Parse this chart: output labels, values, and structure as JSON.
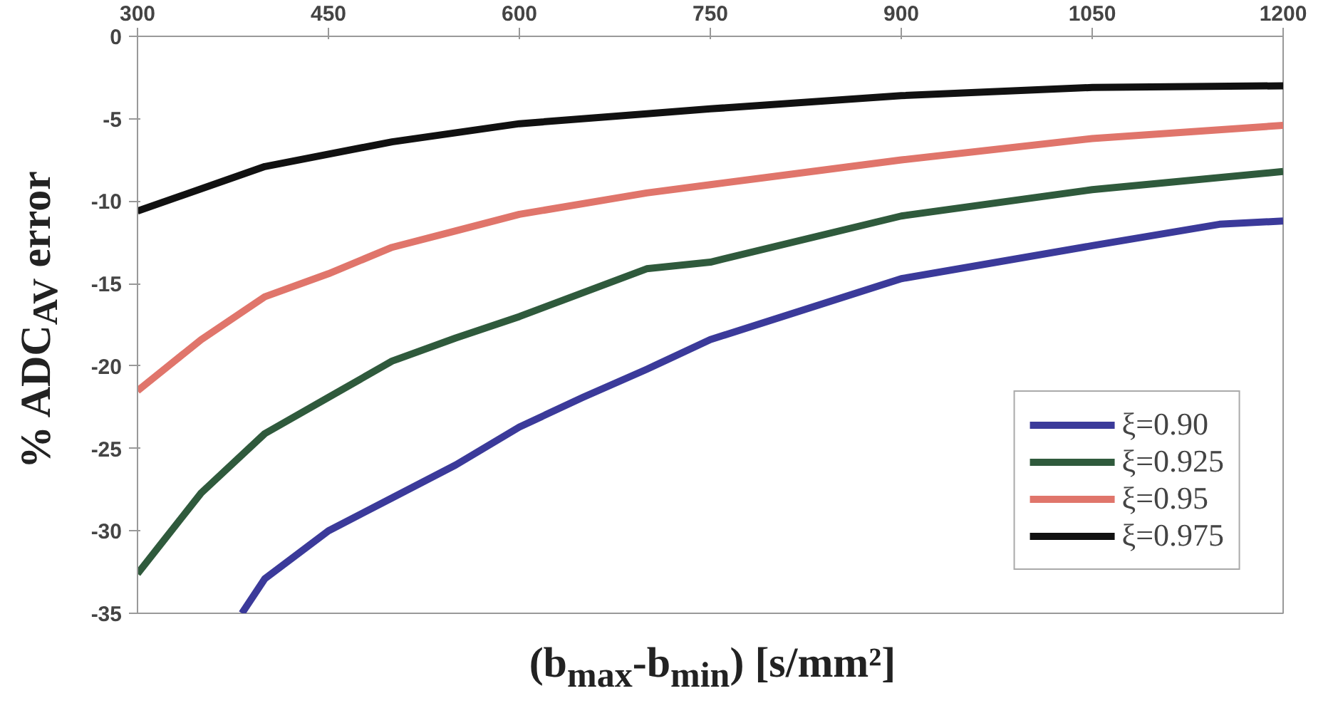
{
  "chart_data": {
    "type": "line",
    "xlabel": "(b$_{max}$-b$_{min}$) [s/mm²]",
    "ylabel": "% ADC$_{AV}$ error",
    "xlim": [
      300,
      1200
    ],
    "xticks": [
      300,
      450,
      600,
      750,
      900,
      1050,
      1200
    ],
    "ylim": [
      -35,
      0
    ],
    "yticks": [
      0,
      -5,
      -10,
      -15,
      -20,
      -25,
      -30,
      -35
    ],
    "grid": false,
    "legend": "bottom right",
    "line_style": "solid",
    "series": [
      {
        "name": "ξ=0.90",
        "color": "#3b3a9a",
        "x": [
          382,
          400,
          450,
          500,
          550,
          600,
          650,
          700,
          750,
          900,
          1050,
          1150,
          1200
        ],
        "values": [
          -35,
          -32.9,
          -30.0,
          -28.0,
          -26.0,
          -23.7,
          -21.9,
          -20.2,
          -18.4,
          -14.7,
          -12.7,
          -11.4,
          -11.2
        ]
      },
      {
        "name": "ξ=0.925",
        "color": "#2f5a3c",
        "x": [
          300,
          350,
          400,
          450,
          500,
          550,
          600,
          700,
          750,
          900,
          1050,
          1200
        ],
        "values": [
          -32.6,
          -27.7,
          -24.1,
          -21.9,
          -19.7,
          -18.3,
          -17.0,
          -14.1,
          -13.7,
          -10.9,
          -9.3,
          -8.2
        ]
      },
      {
        "name": "ξ=0.95",
        "color": "#e0756b",
        "x": [
          300,
          350,
          400,
          450,
          500,
          550,
          600,
          700,
          750,
          900,
          1050,
          1200
        ],
        "values": [
          -21.5,
          -18.4,
          -15.8,
          -14.4,
          -12.8,
          -11.8,
          -10.8,
          -9.5,
          -9.0,
          -7.5,
          -6.2,
          -5.4
        ]
      },
      {
        "name": "ξ=0.975",
        "color": "#111111",
        "x": [
          300,
          400,
          500,
          600,
          700,
          750,
          900,
          1050,
          1200
        ],
        "values": [
          -10.6,
          -7.9,
          -6.4,
          -5.3,
          -4.7,
          -4.4,
          -3.6,
          -3.1,
          -3.0
        ]
      }
    ]
  }
}
